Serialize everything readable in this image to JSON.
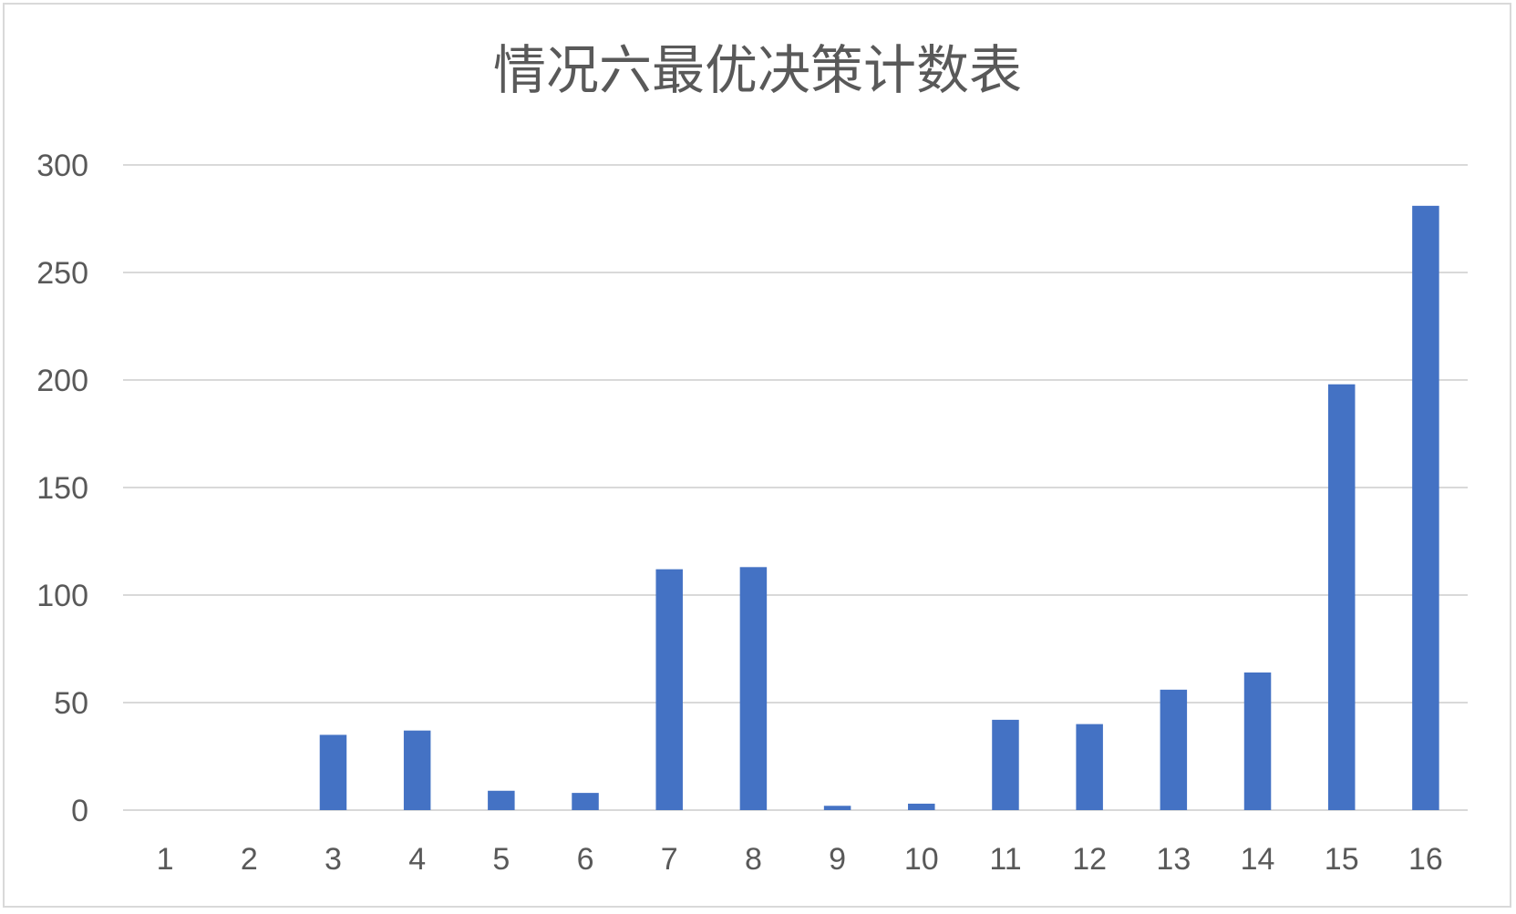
{
  "chart_data": {
    "type": "bar",
    "title": "情况六最优决策计数表",
    "xlabel": "",
    "ylabel": "",
    "categories": [
      "1",
      "2",
      "3",
      "4",
      "5",
      "6",
      "7",
      "8",
      "9",
      "10",
      "11",
      "12",
      "13",
      "14",
      "15",
      "16"
    ],
    "values": [
      0,
      0,
      35,
      37,
      9,
      8,
      112,
      113,
      2,
      3,
      42,
      40,
      56,
      64,
      198,
      281
    ],
    "ylim": [
      0,
      300
    ],
    "yticks": [
      "0",
      "50",
      "100",
      "150",
      "200",
      "250",
      "300"
    ],
    "grid": true,
    "legend": "none",
    "colors": {
      "bar": "#4472C4",
      "grid": "#d9d9d9",
      "text": "#595959",
      "border": "#d9d9d9"
    }
  }
}
